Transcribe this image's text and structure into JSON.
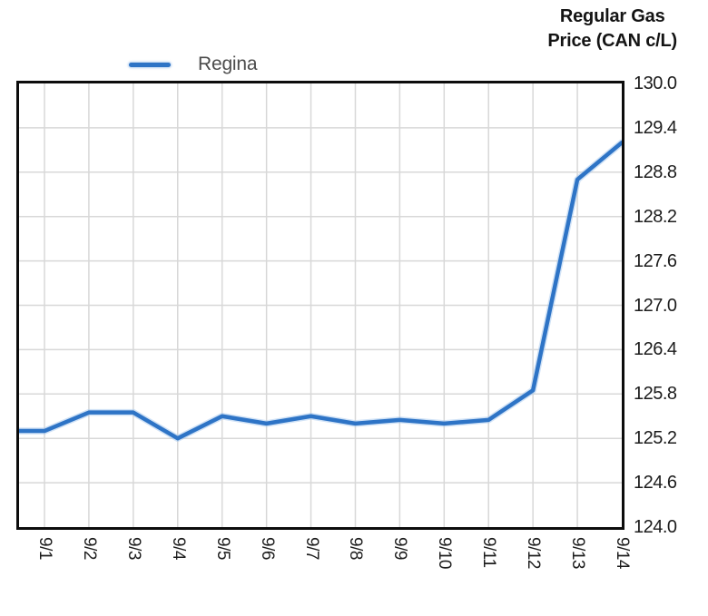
{
  "title": {
    "line1": "Regular Gas",
    "line2": "Price (CAN c/L)"
  },
  "legend": {
    "items": [
      {
        "label": "Regina",
        "color": "#2e74c6"
      }
    ]
  },
  "colors": {
    "line": "#2e74c6",
    "line_halo": "#a9cbee",
    "grid": "#d8d8d8",
    "frame": "#0c0c0c",
    "tick_text": "#1c1c1c",
    "legend_text": "#4b4b4b"
  },
  "chart_data": {
    "type": "line",
    "title": "Regular Gas Price (CAN c/L)",
    "categories": [
      "9/1",
      "9/2",
      "9/3",
      "9/4",
      "9/5",
      "9/6",
      "9/7",
      "9/8",
      "9/9",
      "9/10",
      "9/11",
      "9/12",
      "9/13",
      "9/14"
    ],
    "series": [
      {
        "name": "Regina",
        "color": "#2e74c6",
        "values": [
          125.3,
          125.55,
          125.55,
          125.2,
          125.5,
          125.4,
          125.5,
          125.4,
          125.45,
          125.4,
          125.45,
          125.85,
          128.7,
          129.2
        ]
      }
    ],
    "xlabel": "",
    "ylabel": "Regular Gas Price (CAN c/L)",
    "ylim": [
      124.0,
      130.0
    ],
    "ytick_step": 0.6,
    "yticks": [
      "130.0",
      "129.4",
      "128.8",
      "128.2",
      "127.6",
      "127.0",
      "126.4",
      "125.8",
      "125.2",
      "124.6",
      "124.0"
    ],
    "grid": true,
    "legend_position": "top-left",
    "y_axis_side": "right",
    "x_label_rotation_deg": 90
  }
}
